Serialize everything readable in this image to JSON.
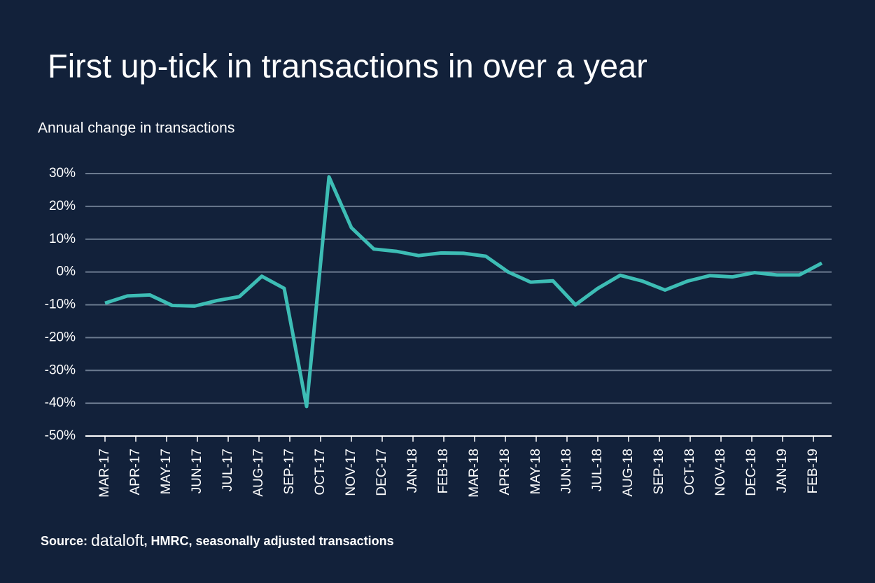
{
  "chart_data": {
    "type": "line",
    "title": "First up-tick in transactions in over a year",
    "subtitle": "Annual change in transactions",
    "source_prefix": "Source:",
    "source_brand": "dataloft",
    "source_rest": ", HMRC, seasonally adjusted transactions",
    "x": [
      0,
      1,
      2,
      3,
      4,
      5,
      6,
      7,
      8,
      9,
      10,
      11,
      12,
      13,
      14,
      15,
      16,
      17,
      18,
      19,
      20,
      21,
      22,
      23,
      24,
      25,
      26,
      27,
      28,
      29,
      30,
      31,
      32
    ],
    "series": [
      {
        "color": "#3dbdb5",
        "values": [
          -9.5,
          -7.3,
          -7,
          -10.2,
          -10.4,
          -8.7,
          -7.5,
          -1.3,
          -5,
          -41,
          29,
          13.5,
          7,
          6.3,
          5,
          5.8,
          5.7,
          4.8,
          0,
          -3.1,
          -2.7,
          -10,
          -5,
          -1,
          -2.8,
          -5.5,
          -2.8,
          -1.1,
          -1.5,
          -0.2,
          -0.9,
          -0.9,
          2.7
        ]
      }
    ],
    "xlim": [
      -0.875,
      32.4375
    ],
    "xticks": [
      {
        "value": 0,
        "label": "MAR-17"
      },
      {
        "value": 1.375,
        "label": "APR-17"
      },
      {
        "value": 2.75,
        "label": "MAY-17"
      },
      {
        "value": 4.125,
        "label": "JUN-17"
      },
      {
        "value": 5.5,
        "label": "JUL-17"
      },
      {
        "value": 6.875,
        "label": "AUG-17"
      },
      {
        "value": 8.25,
        "label": "SEP-17"
      },
      {
        "value": 9.625,
        "label": "OCT-17"
      },
      {
        "value": 11,
        "label": "NOV-17"
      },
      {
        "value": 12.375,
        "label": "DEC-17"
      },
      {
        "value": 13.75,
        "label": "JAN-18"
      },
      {
        "value": 15.125,
        "label": "FEB-18"
      },
      {
        "value": 16.5,
        "label": "MAR-18"
      },
      {
        "value": 17.875,
        "label": "APR-18"
      },
      {
        "value": 19.25,
        "label": "MAY-18"
      },
      {
        "value": 20.625,
        "label": "JUN-18"
      },
      {
        "value": 22,
        "label": "JUL-18"
      },
      {
        "value": 23.375,
        "label": "AUG-18"
      },
      {
        "value": 24.75,
        "label": "SEP-18"
      },
      {
        "value": 26.125,
        "label": "OCT-18"
      },
      {
        "value": 27.5,
        "label": "NOV-18"
      },
      {
        "value": 28.875,
        "label": "DEC-18"
      },
      {
        "value": 30.25,
        "label": "JAN-19"
      },
      {
        "value": 31.625,
        "label": "FEB-19"
      }
    ],
    "ylim": [
      -50,
      30
    ],
    "yticks": [
      {
        "value": 30,
        "label": "30%"
      },
      {
        "value": 20,
        "label": "20%"
      },
      {
        "value": 10,
        "label": "10%"
      },
      {
        "value": 0,
        "label": "0%"
      },
      {
        "value": -10,
        "label": "-10%"
      },
      {
        "value": -20,
        "label": "-20%"
      },
      {
        "value": -30,
        "label": "-30%"
      },
      {
        "value": -40,
        "label": "-40%"
      },
      {
        "value": -50,
        "label": "-50%"
      }
    ],
    "grid": true
  }
}
